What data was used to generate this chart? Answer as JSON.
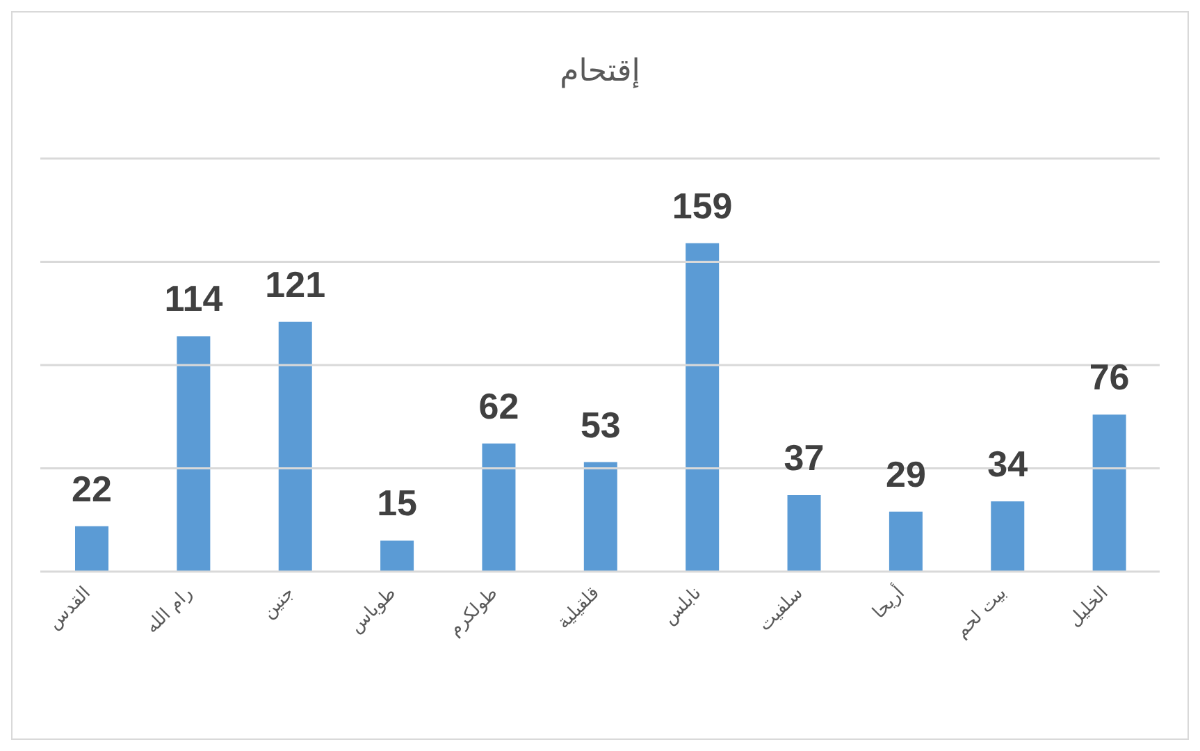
{
  "chart_data": {
    "type": "bar",
    "title": "إقتحام",
    "categories": [
      "القدس",
      "رام الله",
      "جنين",
      "طوباس",
      "طولكرم",
      "قلقيلية",
      "نابلس",
      "سلفيت",
      "أريحا",
      "بيت لحم",
      "الخليل"
    ],
    "values": [
      22,
      114,
      121,
      15,
      62,
      53,
      159,
      37,
      29,
      34,
      76
    ],
    "color": "#5b9bd5",
    "data_labels": true,
    "grid": "y",
    "tick_labels": "x",
    "ylim": [
      0,
      200
    ],
    "yticks": [
      {
        "value": 0,
        "label": null
      },
      {
        "value": 50,
        "label": null
      },
      {
        "value": 100,
        "label": null
      },
      {
        "value": 150,
        "label": null
      },
      {
        "value": 200,
        "label": null
      }
    ]
  }
}
